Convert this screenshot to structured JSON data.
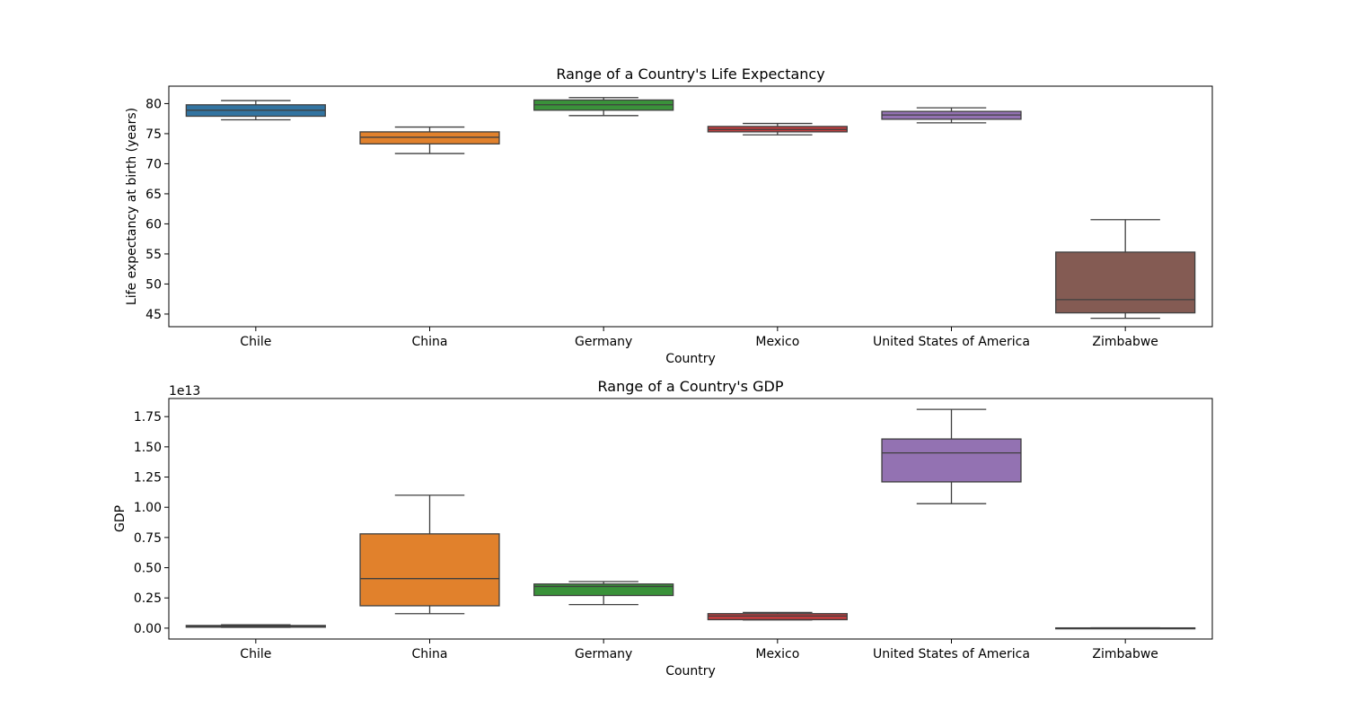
{
  "chart_data": [
    {
      "type": "box",
      "title": "Range of a Country's Life Expectancy",
      "xlabel": "Country",
      "ylabel": "Life expectancy at birth (years)",
      "categories": [
        "Chile",
        "China",
        "Germany",
        "Mexico",
        "United States of America",
        "Zimbabwe"
      ],
      "colors": [
        "#3274a1",
        "#e1812c",
        "#3a923a",
        "#c03d3e",
        "#9372b2",
        "#845b53"
      ],
      "ylim": [
        42.9,
        82.9
      ],
      "yticks": [
        45,
        50,
        55,
        60,
        65,
        70,
        75,
        80
      ],
      "ytick_labels": [
        "45",
        "50",
        "55",
        "60",
        "65",
        "70",
        "75",
        "80"
      ],
      "grid": false,
      "boxes": [
        {
          "category": "Chile",
          "whisker_low": 77.3,
          "q1": 77.9,
          "median": 78.9,
          "q3": 79.8,
          "whisker_high": 80.5
        },
        {
          "category": "China",
          "whisker_low": 71.7,
          "q1": 73.3,
          "median": 74.4,
          "q3": 75.3,
          "whisker_high": 76.1
        },
        {
          "category": "Germany",
          "whisker_low": 78.0,
          "q1": 78.9,
          "median": 79.8,
          "q3": 80.6,
          "whisker_high": 81.0
        },
        {
          "category": "Mexico",
          "whisker_low": 74.8,
          "q1": 75.3,
          "median": 75.7,
          "q3": 76.2,
          "whisker_high": 76.7
        },
        {
          "category": "United States of America",
          "whisker_low": 76.8,
          "q1": 77.4,
          "median": 78.1,
          "q3": 78.7,
          "whisker_high": 79.3
        },
        {
          "category": "Zimbabwe",
          "whisker_low": 44.3,
          "q1": 45.2,
          "median": 47.4,
          "q3": 55.3,
          "whisker_high": 60.7
        }
      ]
    },
    {
      "type": "box",
      "title": "Range of a Country's GDP",
      "xlabel": "Country",
      "ylabel": "GDP",
      "offset_label": "1e13",
      "categories": [
        "Chile",
        "China",
        "Germany",
        "Mexico",
        "United States of America",
        "Zimbabwe"
      ],
      "colors": [
        "#3274a1",
        "#e1812c",
        "#3a923a",
        "#c03d3e",
        "#9372b2",
        "#845b53"
      ],
      "ylim": [
        -0.09,
        1.9
      ],
      "yticks": [
        0,
        0.25,
        0.5,
        0.75,
        1.0,
        1.25,
        1.5,
        1.75
      ],
      "ytick_labels": [
        "0.00",
        "0.25",
        "0.50",
        "0.75",
        "1.00",
        "1.25",
        "1.50",
        "1.75"
      ],
      "grid": false,
      "boxes": [
        {
          "category": "Chile",
          "whisker_low": 0.007,
          "q1": 0.008,
          "median": 0.015,
          "q3": 0.022,
          "whisker_high": 0.028
        },
        {
          "category": "China",
          "whisker_low": 0.12,
          "q1": 0.185,
          "median": 0.41,
          "q3": 0.78,
          "whisker_high": 1.1
        },
        {
          "category": "Germany",
          "whisker_low": 0.195,
          "q1": 0.27,
          "median": 0.345,
          "q3": 0.365,
          "whisker_high": 0.385
        },
        {
          "category": "Mexico",
          "whisker_low": 0.068,
          "q1": 0.07,
          "median": 0.1,
          "q3": 0.12,
          "whisker_high": 0.13
        },
        {
          "category": "United States of America",
          "whisker_low": 1.03,
          "q1": 1.21,
          "median": 1.45,
          "q3": 1.565,
          "whisker_high": 1.81
        },
        {
          "category": "Zimbabwe",
          "whisker_low": 0.0,
          "q1": 0.0,
          "median": 0.0,
          "q3": 0.002,
          "whisker_high": 0.003
        }
      ]
    }
  ]
}
